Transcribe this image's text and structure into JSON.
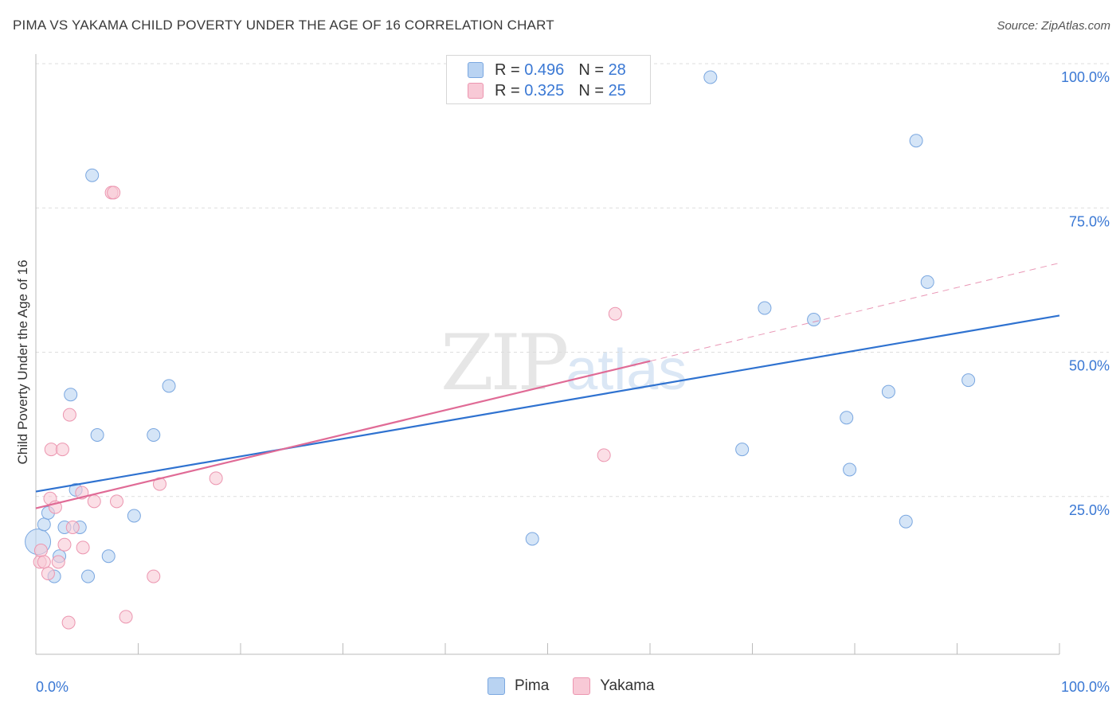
{
  "title": "PIMA VS YAKAMA CHILD POVERTY UNDER THE AGE OF 16 CORRELATION CHART",
  "source": "Source: ZipAtlas.com",
  "watermark": {
    "zip": "ZIP",
    "atlas": "atlas"
  },
  "legend_top": {
    "pima": {
      "r_label": "R = ",
      "r_value": "0.496",
      "n_label": "N = ",
      "n_value": "28"
    },
    "yakama": {
      "r_label": "R = ",
      "r_value": "0.325",
      "n_label": "N = ",
      "n_value": "25"
    }
  },
  "legend_bottom": {
    "pima": "Pima",
    "yakama": "Yakama"
  },
  "colors": {
    "pima_fill": "#b9d3f2",
    "pima_stroke": "#7aa7e0",
    "pima_line": "#2f72d0",
    "yakama_fill": "#f8c9d6",
    "yakama_stroke": "#ec96b0",
    "yakama_line": "#e06b96",
    "grid": "#dddddd",
    "tick_label": "#3a78d4"
  },
  "chart_data": {
    "type": "scatter",
    "title": "PIMA VS YAKAMA CHILD POVERTY UNDER THE AGE OF 16 CORRELATION CHART",
    "xlabel": "",
    "ylabel": "Child Poverty Under the Age of 16",
    "xlim": [
      0,
      100
    ],
    "ylim": [
      0,
      100
    ],
    "x_tick_labels": [
      "0.0%",
      "100.0%"
    ],
    "y_ticks": [
      25,
      50,
      75,
      100
    ],
    "y_tick_labels": [
      "25.0%",
      "50.0%",
      "75.0%",
      "100.0%"
    ],
    "series": [
      {
        "name": "Pima",
        "r": 0.496,
        "n": 28,
        "points": [
          {
            "x": 0.2,
            "y": 19.5,
            "big": true
          },
          {
            "x": 0.8,
            "y": 22.5
          },
          {
            "x": 1.2,
            "y": 24.5
          },
          {
            "x": 1.8,
            "y": 13.5
          },
          {
            "x": 2.3,
            "y": 17.0
          },
          {
            "x": 2.8,
            "y": 22.0
          },
          {
            "x": 3.4,
            "y": 45.0
          },
          {
            "x": 3.9,
            "y": 28.5
          },
          {
            "x": 4.3,
            "y": 22.0
          },
          {
            "x": 5.1,
            "y": 13.5
          },
          {
            "x": 5.5,
            "y": 83.0
          },
          {
            "x": 6.0,
            "y": 38.0
          },
          {
            "x": 7.1,
            "y": 17.0
          },
          {
            "x": 9.6,
            "y": 24.0
          },
          {
            "x": 11.5,
            "y": 38.0
          },
          {
            "x": 13.0,
            "y": 46.5
          },
          {
            "x": 48.5,
            "y": 20.0
          },
          {
            "x": 65.9,
            "y": 100.0
          },
          {
            "x": 69.0,
            "y": 35.5
          },
          {
            "x": 71.2,
            "y": 60.0
          },
          {
            "x": 76.0,
            "y": 58.0
          },
          {
            "x": 79.2,
            "y": 41.0
          },
          {
            "x": 79.5,
            "y": 32.0
          },
          {
            "x": 83.3,
            "y": 45.5
          },
          {
            "x": 85.0,
            "y": 23.0
          },
          {
            "x": 86.0,
            "y": 89.0
          },
          {
            "x": 87.1,
            "y": 64.5
          },
          {
            "x": 91.1,
            "y": 47.5
          }
        ],
        "trend": {
          "x": [
            0,
            100
          ],
          "y": [
            28.2,
            58.7
          ],
          "style": "solid"
        }
      },
      {
        "name": "Yakama",
        "r": 0.325,
        "n": 25,
        "points": [
          {
            "x": 0.4,
            "y": 16.0
          },
          {
            "x": 0.5,
            "y": 18.0
          },
          {
            "x": 0.8,
            "y": 16.0
          },
          {
            "x": 1.2,
            "y": 14.0
          },
          {
            "x": 1.4,
            "y": 27.0
          },
          {
            "x": 1.5,
            "y": 35.5
          },
          {
            "x": 1.9,
            "y": 25.5
          },
          {
            "x": 2.2,
            "y": 16.0
          },
          {
            "x": 2.6,
            "y": 35.5
          },
          {
            "x": 2.8,
            "y": 19.0
          },
          {
            "x": 3.2,
            "y": 5.5
          },
          {
            "x": 3.3,
            "y": 41.5
          },
          {
            "x": 3.6,
            "y": 22.0
          },
          {
            "x": 4.5,
            "y": 28.0
          },
          {
            "x": 4.6,
            "y": 18.5
          },
          {
            "x": 5.7,
            "y": 26.5
          },
          {
            "x": 7.4,
            "y": 80.0
          },
          {
            "x": 7.6,
            "y": 80.0
          },
          {
            "x": 7.9,
            "y": 26.5
          },
          {
            "x": 8.8,
            "y": 6.5
          },
          {
            "x": 11.5,
            "y": 13.5
          },
          {
            "x": 12.1,
            "y": 29.5
          },
          {
            "x": 17.6,
            "y": 30.5
          },
          {
            "x": 55.5,
            "y": 34.5
          },
          {
            "x": 56.6,
            "y": 59.0
          }
        ],
        "trend": {
          "x": [
            0,
            60
          ],
          "y": [
            25.3,
            50.8
          ],
          "style": "solid"
        },
        "trend_extension": {
          "x": [
            60,
            100
          ],
          "y": [
            50.8,
            67.8
          ],
          "style": "dashed"
        }
      }
    ]
  }
}
